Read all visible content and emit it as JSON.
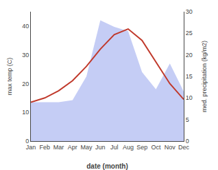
{
  "chart_data": {
    "type": "line",
    "categories": [
      "Jan",
      "Feb",
      "Mar",
      "Apr",
      "May",
      "Jun",
      "Jul",
      "Aug",
      "Sep",
      "Oct",
      "Nov",
      "Dec"
    ],
    "xlabel": "date (month)",
    "ylabel": "max temp (C)",
    "y2label": "med. precipitation (kg/m2)",
    "ylim": [
      0,
      45
    ],
    "yticks": [
      0,
      10,
      20,
      30,
      40
    ],
    "y2lim": [
      0,
      30
    ],
    "y2ticks": [
      0,
      5,
      10,
      15,
      20,
      25,
      30
    ],
    "grid": false,
    "series": [
      {
        "type": "area",
        "color": "#c5cdf5",
        "axis": "y2",
        "values": [
          9.0,
          9.0,
          9.0,
          9.5,
          15.0,
          28.0,
          26.5,
          25.5,
          16.0,
          12.0,
          18.0,
          11.5
        ]
      },
      {
        "type": "line",
        "color": "#c0392b",
        "values": [
          13.5,
          15.0,
          17.5,
          21.0,
          26.0,
          32.0,
          37.0,
          39.0,
          35.0,
          27.5,
          20.0,
          14.5
        ]
      }
    ]
  }
}
